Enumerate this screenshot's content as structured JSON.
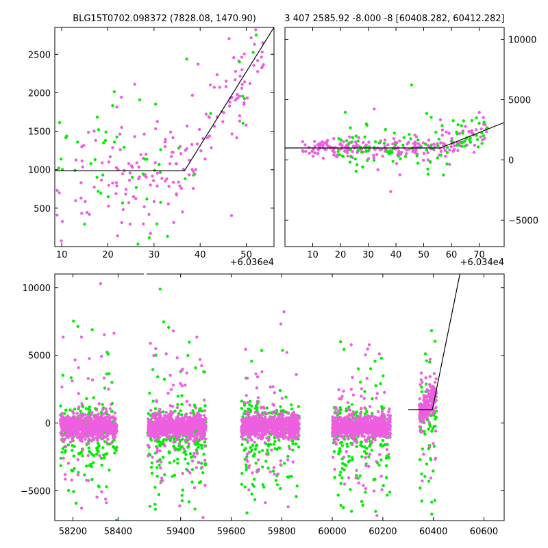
{
  "colors": {
    "series_a": "#ee5ee0",
    "series_b": "#00ee00",
    "model": "#000000",
    "background": "#ffffff"
  },
  "chart_data": [
    {
      "type": "scatter",
      "panel": "top-left",
      "title": "BLG15T0702.098372 (7828.08, 1470.90)",
      "offset_label": "+6.036e4",
      "xlim": [
        8.5,
        56
      ],
      "ylim": [
        0,
        2850
      ],
      "xticks": [
        10,
        20,
        30,
        40,
        50
      ],
      "yticks": [
        500,
        1000,
        1500,
        2000,
        2500
      ],
      "yaxis_side": "left",
      "model_line": [
        [
          8.5,
          985
        ],
        [
          36.6,
          985
        ],
        [
          56,
          2850
        ]
      ],
      "series": [
        {
          "color_key": "series_a",
          "count": 190,
          "x_range": [
            9,
            54
          ],
          "base": "piecewise",
          "spread": 330
        },
        {
          "color_key": "series_b",
          "count": 60,
          "x_range": [
            9,
            54
          ],
          "base": "piecewise",
          "spread": 420
        }
      ]
    },
    {
      "type": "scatter",
      "panel": "top-right",
      "title": "3 407 2585.92 -8.000 -8 [60408.282, 60412.282]",
      "offset_label": "+6.034e4",
      "xlim": [
        0,
        79
      ],
      "ylim": [
        -7200,
        11000
      ],
      "xticks": [
        10,
        20,
        30,
        40,
        50,
        60,
        70
      ],
      "yticks": [
        10000,
        5000,
        0,
        -5000
      ],
      "yaxis_side": "right",
      "model_line": [
        [
          0,
          990
        ],
        [
          56,
          990
        ],
        [
          79,
          3100
        ]
      ],
      "series": [
        {
          "color_key": "series_a",
          "count": 240,
          "x_range": [
            6,
            73
          ],
          "base": "piecewise",
          "spread": 420
        },
        {
          "color_key": "series_b",
          "count": 110,
          "x_range": [
            19,
            73
          ],
          "base": "piecewise",
          "spread": 900
        }
      ]
    },
    {
      "type": "scatter",
      "panel": "bottom",
      "title": "",
      "xlim": [
        58120,
        60680
      ],
      "ylim": [
        -7200,
        11000
      ],
      "xticks": [
        58200,
        58400,
        59400,
        59600,
        59800,
        60000,
        60200,
        60400,
        60600
      ],
      "yticks": [
        10000,
        5000,
        0,
        -5000
      ],
      "yaxis_side": "left",
      "axis_break": [
        58520,
        59260
      ],
      "model_line": [
        [
          60300,
          990
        ],
        [
          60396,
          990
        ],
        [
          60505,
          11000
        ]
      ],
      "seasons": [
        {
          "x_range": [
            58145,
            58395
          ],
          "count": 700,
          "outlier_count": 60
        },
        {
          "x_range": [
            59270,
            59500
          ],
          "count": 800,
          "outlier_count": 90
        },
        {
          "x_range": [
            59640,
            59870
          ],
          "count": 700,
          "outlier_count": 70
        },
        {
          "x_range": [
            60000,
            60230
          ],
          "count": 700,
          "outlier_count": 80
        },
        {
          "x_range": [
            60345,
            60412
          ],
          "count": 220,
          "outlier_count": 25
        }
      ]
    }
  ]
}
